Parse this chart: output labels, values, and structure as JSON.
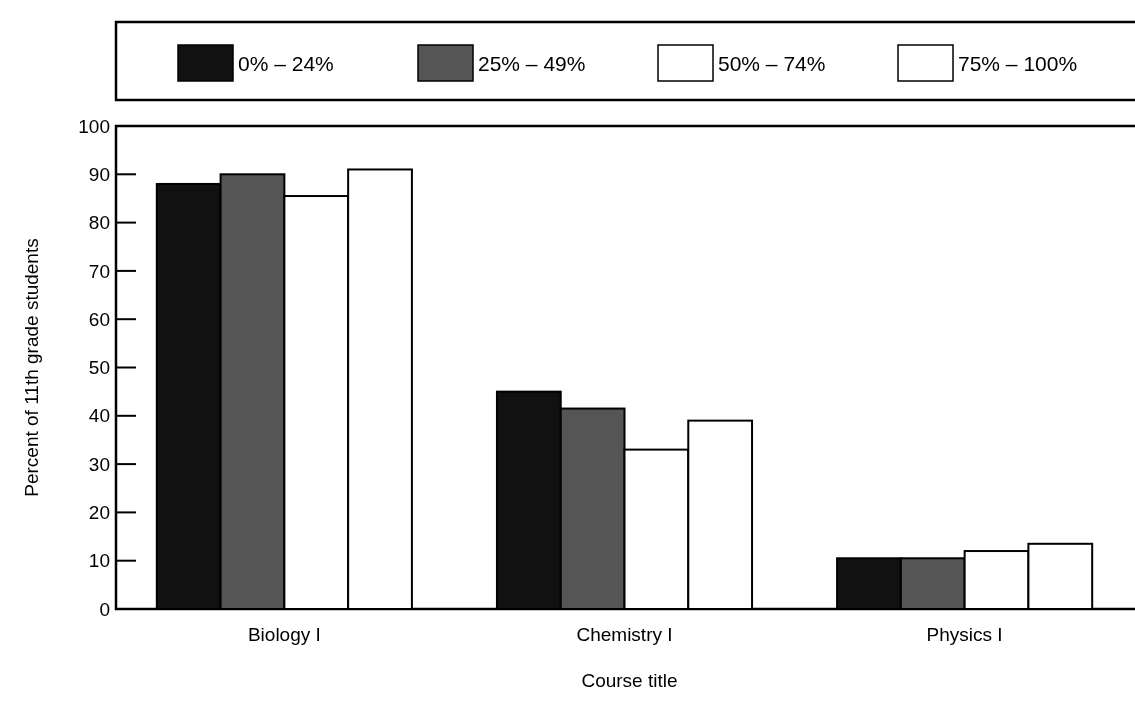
{
  "chart_data": {
    "type": "bar",
    "xlabel": "Course title",
    "ylabel": "Percent of 11th grade students",
    "categories": [
      "Biology I",
      "Chemistry I",
      "Physics I"
    ],
    "series": [
      {
        "name": "0% – 24%",
        "color": "#111111",
        "values": [
          88,
          45,
          10.5
        ]
      },
      {
        "name": "25% – 49%",
        "color": "#555555",
        "values": [
          90,
          41.5,
          10.5
        ]
      },
      {
        "name": "50% – 74%",
        "color": "#ffffff",
        "values": [
          85.5,
          33,
          12
        ]
      },
      {
        "name": "75% – 100%",
        "color": "#ffffff",
        "values": [
          91,
          39,
          13.5
        ]
      }
    ],
    "ylim": [
      0,
      100
    ],
    "yticks": [
      0,
      10,
      20,
      30,
      40,
      50,
      60,
      70,
      80,
      90,
      100
    ],
    "legend": "top"
  }
}
